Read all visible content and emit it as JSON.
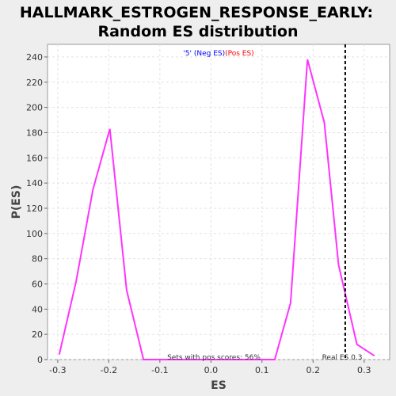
{
  "chart_data": {
    "type": "line",
    "title": "HALLMARK_ESTROGEN_RESPONSE_EARLY:",
    "subtitle": "Random ES distribution",
    "xlabel": "ES",
    "ylabel": "P(ES)",
    "xlim": [
      -0.32,
      0.35
    ],
    "ylim": [
      0,
      250
    ],
    "xticks": [
      -0.3,
      -0.2,
      -0.1,
      0,
      0.1,
      0.2,
      0.3
    ],
    "xtick_labels": [
      "-0.3",
      "-0.2",
      "-0.1",
      "0.0",
      "0.1",
      "0.2",
      "0.3"
    ],
    "yticks": [
      0,
      20,
      40,
      60,
      80,
      100,
      120,
      140,
      160,
      180,
      200,
      220,
      240
    ],
    "grid": true,
    "legend": {
      "placement": "top-center",
      "prefix": "'5' ",
      "neg_label": "(Neg ES)",
      "pos_label": "(Pos ES)",
      "neg_color": "#0000ff",
      "pos_color": "#ff0000"
    },
    "series": [
      {
        "color": "#ff33ff",
        "x": [
          -0.297,
          -0.264,
          -0.231,
          -0.198,
          -0.165,
          -0.132,
          0.125,
          0.156,
          0.189,
          0.222,
          0.25,
          0.286,
          0.32
        ],
        "y": [
          4,
          62,
          135,
          183,
          55,
          0,
          0,
          45,
          238,
          188,
          75,
          12,
          3
        ]
      }
    ],
    "real_es": {
      "x": 0.263,
      "color": "#000000",
      "label": "Real ES 0.3"
    },
    "annotation": "Sets with pos scores: 56%"
  }
}
